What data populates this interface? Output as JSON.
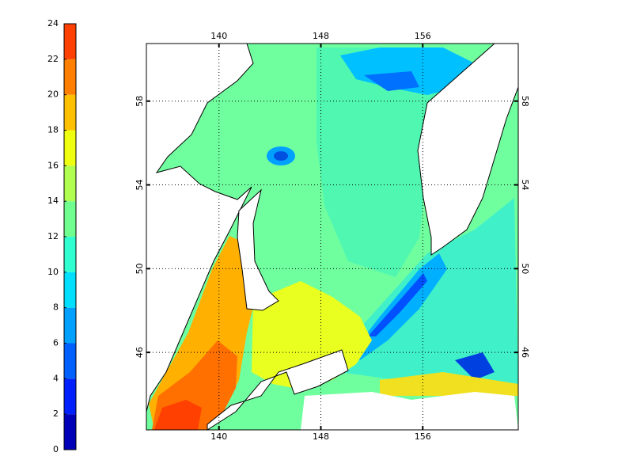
{
  "colorbar": {
    "ticks": [
      0,
      2,
      4,
      6,
      8,
      10,
      12,
      14,
      16,
      18,
      20,
      22,
      24
    ],
    "lim": [
      0,
      24
    ],
    "colors": [
      "#0000b8",
      "#0020ff",
      "#0060ff",
      "#00a0ff",
      "#00dfff",
      "#30ffcf",
      "#70ff8f",
      "#b0ff50",
      "#efff10",
      "#ffc000",
      "#ff8000",
      "#ff4000"
    ]
  },
  "map": {
    "lon_ticks": [
      140,
      148,
      156
    ],
    "lat_ticks": [
      58,
      54,
      50,
      46
    ],
    "lonlim": [
      134.3,
      163.5
    ],
    "latlim": [
      42.3,
      60.75
    ],
    "grid": true
  }
}
